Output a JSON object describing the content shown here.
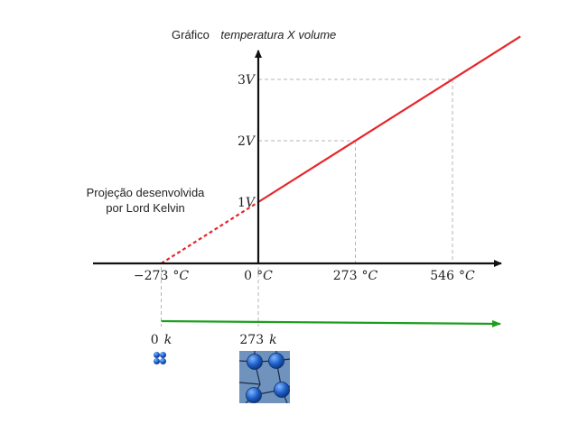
{
  "chart_data": {
    "type": "line",
    "title_prefix": "Gráfico",
    "title_italic": "temperatura X volume",
    "annotation": [
      "Projeção desenvolvida",
      "por Lord Kelvin"
    ],
    "x_ticks": [
      {
        "value": -273,
        "num": "−273",
        "unit": "°C"
      },
      {
        "value": 0,
        "num": "0",
        "unit": "°C"
      },
      {
        "value": 273,
        "num": "273",
        "unit": "°C"
      },
      {
        "value": 546,
        "num": "546",
        "unit": "°C"
      }
    ],
    "y_ticks": [
      {
        "value": 1,
        "num": "1",
        "unit": "V"
      },
      {
        "value": 2,
        "num": "2",
        "unit": "V"
      },
      {
        "value": 3,
        "num": "3",
        "unit": "V"
      }
    ],
    "series": [
      {
        "style": "dashed",
        "color": "#e8262a",
        "x": [
          -273,
          0
        ],
        "y": [
          0,
          1
        ]
      },
      {
        "style": "solid",
        "color": "#e8262a",
        "x": [
          0,
          737
        ],
        "y": [
          1,
          3.7
        ]
      }
    ],
    "kelvin_axis": {
      "color": "#1e9e1e",
      "ticks": [
        {
          "value": -273,
          "num": "0",
          "unit": "k"
        },
        {
          "value": 0,
          "num": "273",
          "unit": "k"
        }
      ]
    },
    "icons": [
      "particles-compact-icon",
      "particles-spread-icon"
    ]
  }
}
